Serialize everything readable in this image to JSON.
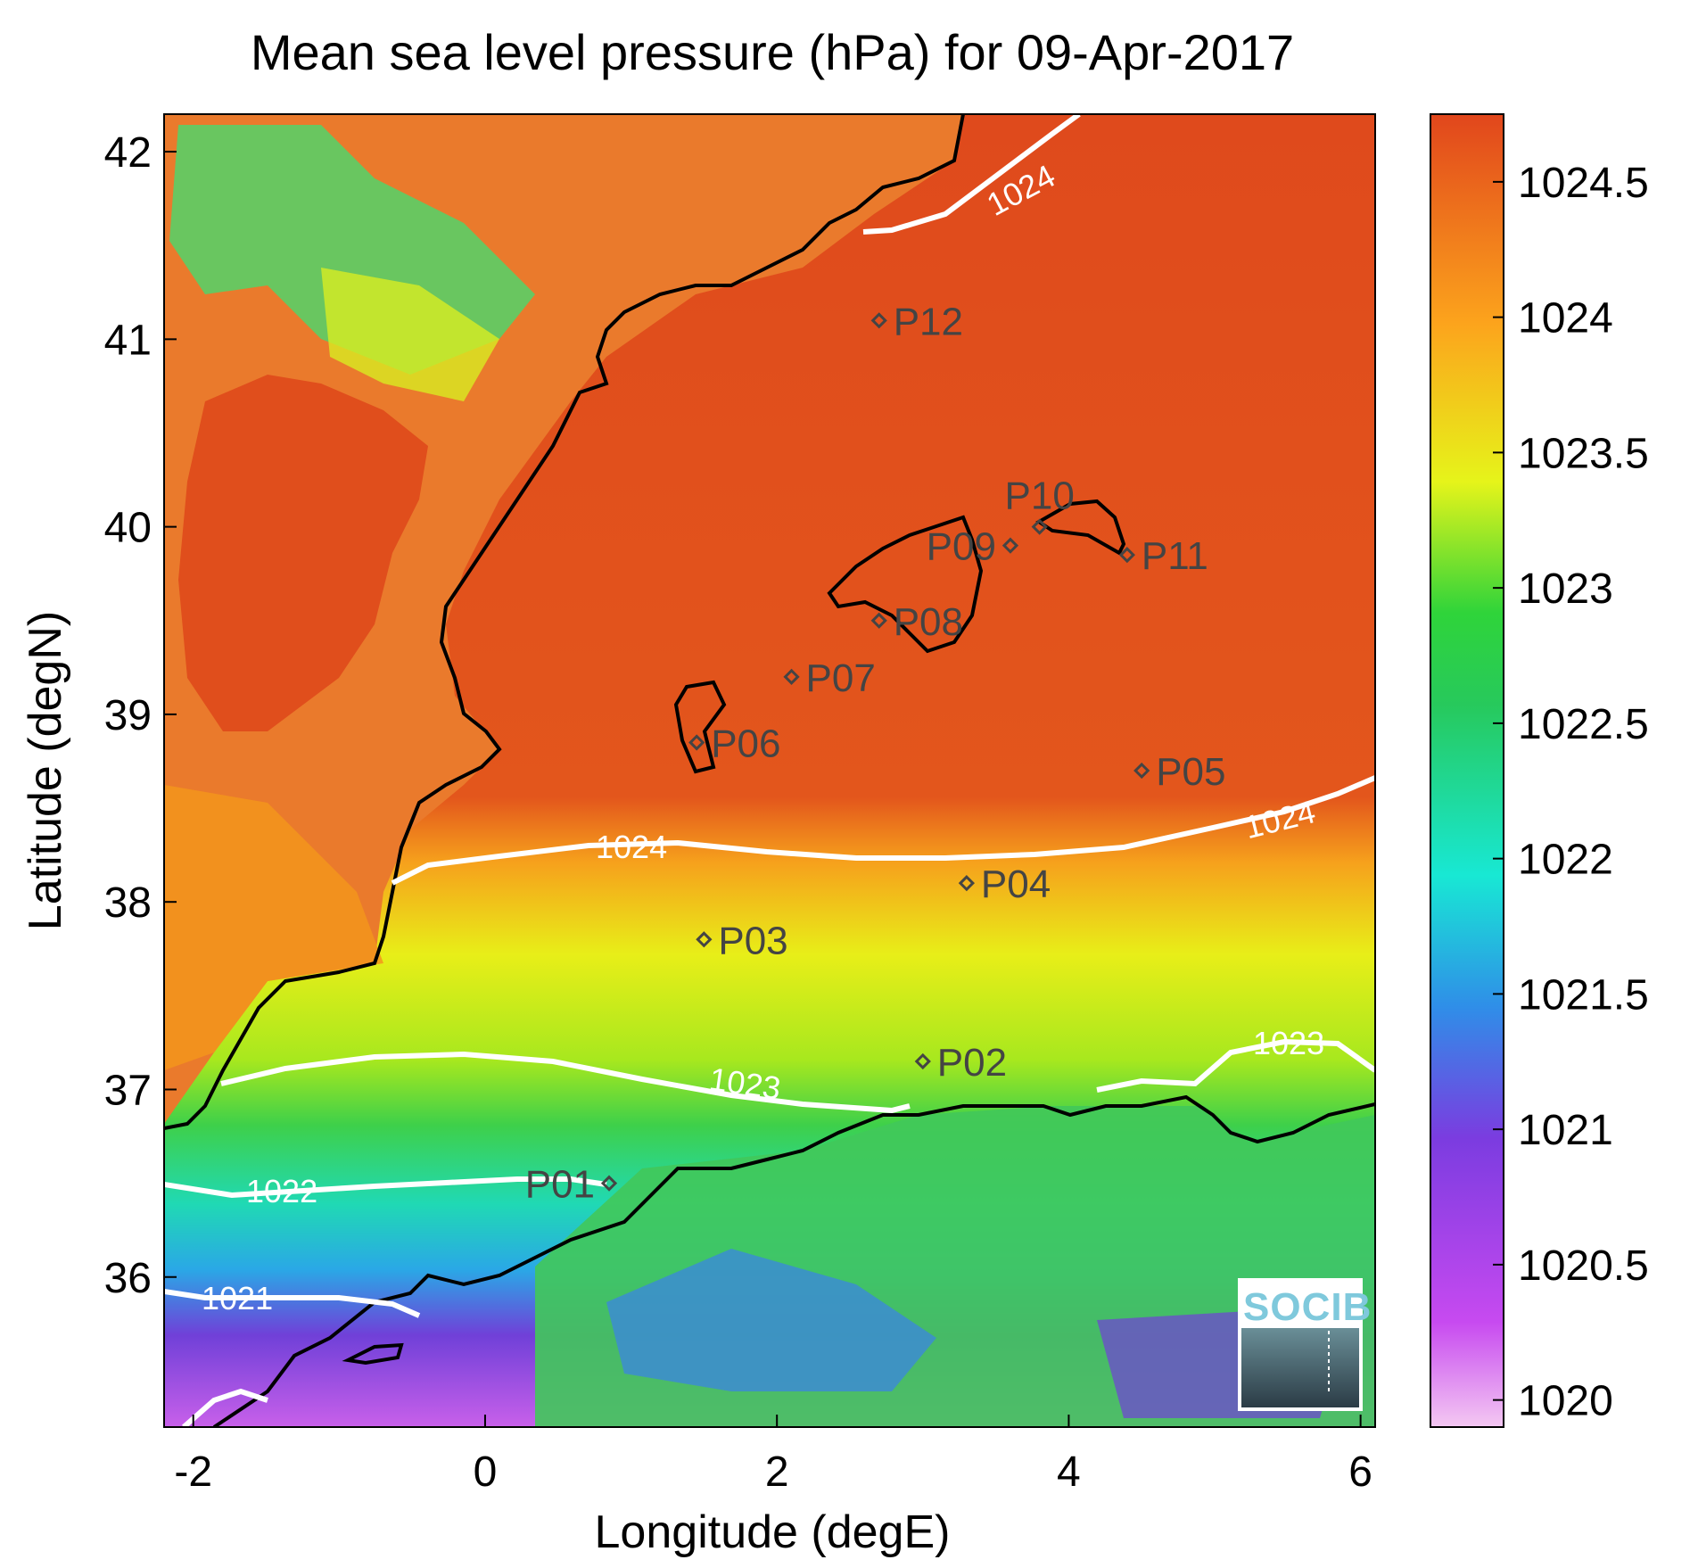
{
  "title": "Mean sea level pressure (hPa) for 09-Apr-2017",
  "xlabel": "Longitude (degE)",
  "ylabel": "Latitude (degN)",
  "xaxis": {
    "range": [
      -2.2,
      6.1
    ],
    "ticks": [
      -2,
      0,
      2,
      4,
      6
    ],
    "tick_labels": [
      "-2",
      "0",
      "2",
      "4",
      "6"
    ]
  },
  "yaxis": {
    "range": [
      35.2,
      42.2
    ],
    "ticks": [
      36,
      37,
      38,
      39,
      40,
      41,
      42
    ],
    "tick_labels": [
      "36",
      "37",
      "38",
      "39",
      "40",
      "41",
      "42"
    ]
  },
  "colorbar": {
    "range": [
      1019.9,
      1024.75
    ],
    "ticks": [
      1020,
      1020.5,
      1021,
      1021.5,
      1022,
      1022.5,
      1023,
      1023.5,
      1024,
      1024.5
    ],
    "tick_labels": [
      "1020",
      "1020.5",
      "1021",
      "1021.5",
      "1022",
      "1022.5",
      "1023",
      "1023.5",
      "1024",
      "1024.5"
    ],
    "colors": [
      "#f2b8f0",
      "#c74af0",
      "#7b3ce0",
      "#2f8ee8",
      "#18e8d4",
      "#27c95c",
      "#2fd43a",
      "#e6f41a",
      "#fca41c",
      "#e1461c"
    ]
  },
  "colors": {
    "land_high": "#e05a24",
    "sea_high": "#df4a1c",
    "coastline": "#000000",
    "contour": "#ffffff",
    "station": "#444444",
    "logo_text": "#7fc9dc"
  },
  "stations": [
    {
      "name": "P01",
      "lon": 0.85,
      "lat": 36.5,
      "label_side": "left"
    },
    {
      "name": "P02",
      "lon": 3.0,
      "lat": 37.15,
      "label_side": "right"
    },
    {
      "name": "P03",
      "lon": 1.5,
      "lat": 37.8,
      "label_side": "right"
    },
    {
      "name": "P04",
      "lon": 3.3,
      "lat": 38.1,
      "label_side": "right"
    },
    {
      "name": "P05",
      "lon": 4.5,
      "lat": 38.7,
      "label_side": "right"
    },
    {
      "name": "P06",
      "lon": 1.45,
      "lat": 38.85,
      "label_side": "right"
    },
    {
      "name": "P07",
      "lon": 2.1,
      "lat": 39.2,
      "label_side": "right"
    },
    {
      "name": "P08",
      "lon": 2.7,
      "lat": 39.5,
      "label_side": "right"
    },
    {
      "name": "P09",
      "lon": 3.6,
      "lat": 39.9,
      "label_side": "left"
    },
    {
      "name": "P10",
      "lon": 3.8,
      "lat": 40.0,
      "label_side": "above"
    },
    {
      "name": "P11",
      "lon": 4.4,
      "lat": 39.85,
      "label_side": "right"
    },
    {
      "name": "P12",
      "lon": 2.7,
      "lat": 41.1,
      "label_side": "right"
    }
  ],
  "contours": [
    {
      "level": "1024",
      "label": "1024"
    },
    {
      "level": "1023",
      "label": "1023"
    },
    {
      "level": "1022",
      "label": "1022"
    },
    {
      "level": "1021",
      "label": "1021"
    }
  ],
  "logo": {
    "text": "SOCIB"
  }
}
